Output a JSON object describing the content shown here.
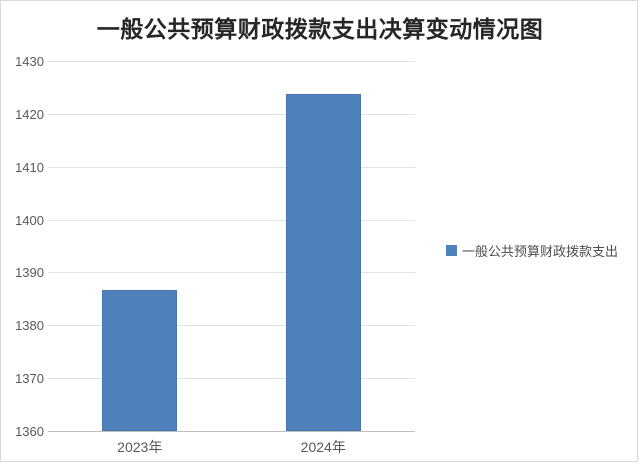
{
  "chart": {
    "title": "一般公共预算财政拨款支出决算变动情况图"
  },
  "legend": {
    "label": "一般公共预算财政拨款支出"
  },
  "chart_data": {
    "type": "bar",
    "title": "一般公共预算财政拨款支出决算变动情况图",
    "categories": [
      "2023年",
      "2024年"
    ],
    "series": [
      {
        "name": "一般公共预算财政拨款支出",
        "values": [
          1386.6,
          1423.8
        ]
      }
    ],
    "ylim": [
      1360,
      1430
    ],
    "ytick_step": 10,
    "yticks": [
      1360,
      1370,
      1380,
      1390,
      1400,
      1410,
      1420,
      1430
    ],
    "grid": true,
    "legend_position": "right",
    "bar_color": "#4F81BD"
  },
  "colors": {
    "bar": "#4F81BD",
    "bar_border": "#4878B0",
    "gridline": "#E3E3E3",
    "axis_line": "#BFBFBF",
    "tick_text": "#595959",
    "title_text": "#262626",
    "frame_border": "#D9D9D9"
  }
}
